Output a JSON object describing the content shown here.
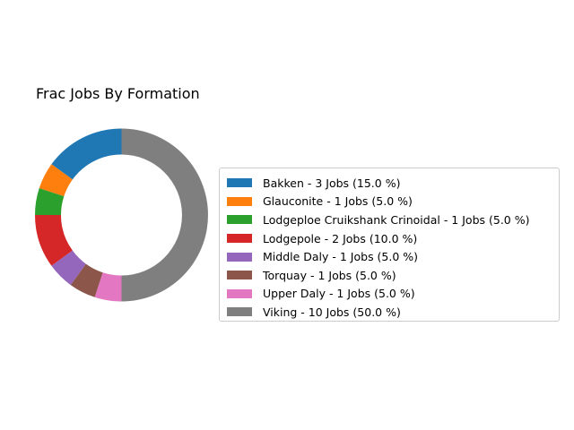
{
  "chart_data": {
    "type": "pie",
    "title": "Frac Jobs By Formation",
    "donut": true,
    "legend_position": "right",
    "categories": [
      "Bakken",
      "Glauconite",
      "Lodgeploe Cruikshank Crinoidal",
      "Lodgepole",
      "Middle Daly",
      "Torquay",
      "Upper Daly",
      "Viking"
    ],
    "values": [
      3,
      1,
      1,
      2,
      1,
      1,
      1,
      10
    ],
    "percentages": [
      15.0,
      5.0,
      5.0,
      10.0,
      5.0,
      5.0,
      5.0,
      50.0
    ],
    "legend_labels": [
      "Bakken - 3 Jobs (15.0 %)",
      "Glauconite - 1 Jobs (5.0 %)",
      "Lodgeploe Cruikshank Crinoidal - 1 Jobs (5.0 %)",
      "Lodgepole - 2 Jobs (10.0 %)",
      "Middle Daly - 1 Jobs (5.0 %)",
      "Torquay - 1 Jobs (5.0 %)",
      "Upper Daly - 1 Jobs (5.0 %)",
      "Viking - 10 Jobs (50.0 %)"
    ],
    "colors": [
      "#1f77b4",
      "#ff7f0e",
      "#2ca02c",
      "#d62728",
      "#9467bd",
      "#8c564b",
      "#e377c2",
      "#7f7f7f"
    ]
  }
}
